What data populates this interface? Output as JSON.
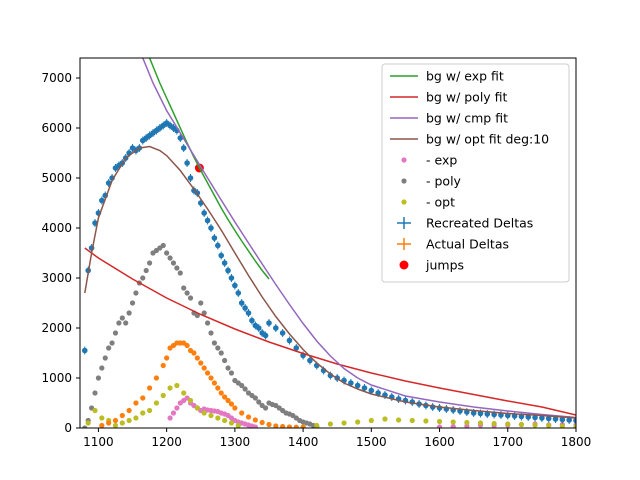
{
  "chart_data": {
    "type": "scatter",
    "title": "",
    "xlabel": "",
    "ylabel": "",
    "xlim": [
      1073,
      1800
    ],
    "ylim": [
      0,
      7400
    ],
    "x_ticks": [
      1100,
      1200,
      1300,
      1400,
      1500,
      1600,
      1700,
      1800
    ],
    "y_ticks": [
      0,
      1000,
      2000,
      3000,
      4000,
      5000,
      6000,
      7000
    ],
    "grid": false,
    "legend_position": "top-right",
    "series": [
      {
        "name": "bg w/ exp fit",
        "kind": "line",
        "color": "#2ca02c",
        "x": [
          1175,
          1190,
          1200,
          1210,
          1220,
          1230,
          1240,
          1250,
          1260,
          1270,
          1280,
          1290,
          1300,
          1310,
          1320,
          1330,
          1340,
          1350
        ],
        "y": [
          7400,
          6900,
          6600,
          6300,
          6000,
          5700,
          5420,
          5150,
          4900,
          4650,
          4400,
          4170,
          3950,
          3740,
          3540,
          3340,
          3150,
          2980
        ]
      },
      {
        "name": "bg w/ poly fit",
        "kind": "line",
        "color": "#d62728",
        "x": [
          1080,
          1100,
          1150,
          1200,
          1250,
          1300,
          1350,
          1400,
          1450,
          1500,
          1550,
          1600,
          1650,
          1700,
          1750,
          1800
        ],
        "y": [
          3600,
          3400,
          2980,
          2600,
          2270,
          1980,
          1720,
          1490,
          1280,
          1100,
          940,
          800,
          670,
          540,
          420,
          260
        ]
      },
      {
        "name": "bg w/ cmp fit",
        "kind": "line",
        "color": "#9467bd",
        "x": [
          1165,
          1180,
          1200,
          1220,
          1240,
          1260,
          1280,
          1300,
          1320,
          1340,
          1360,
          1380,
          1400,
          1420,
          1440,
          1460,
          1480,
          1500,
          1550,
          1600,
          1650,
          1700,
          1750,
          1800
        ],
        "y": [
          7400,
          6900,
          6350,
          5900,
          5450,
          5000,
          4560,
          4120,
          3700,
          3280,
          2870,
          2470,
          2090,
          1740,
          1440,
          1190,
          1000,
          860,
          640,
          520,
          420,
          340,
          270,
          210
        ]
      },
      {
        "name": "bg w/ opt fit deg:10",
        "kind": "line",
        "color": "#8c564b",
        "x": [
          1080,
          1090,
          1100,
          1120,
          1140,
          1160,
          1175,
          1190,
          1200,
          1220,
          1240,
          1260,
          1280,
          1300,
          1320,
          1340,
          1360,
          1380,
          1400,
          1420,
          1440,
          1460,
          1480,
          1500,
          1550,
          1600,
          1650,
          1700,
          1750,
          1800
        ],
        "y": [
          2700,
          3500,
          4200,
          4950,
          5400,
          5600,
          5630,
          5550,
          5450,
          5150,
          4780,
          4380,
          3960,
          3500,
          3050,
          2620,
          2230,
          1880,
          1570,
          1300,
          1080,
          900,
          780,
          680,
          520,
          420,
          350,
          290,
          250,
          200
        ]
      },
      {
        "name": "- exp",
        "kind": "scatter",
        "color": "#e377c2",
        "x": [
          1205,
          1210,
          1215,
          1220,
          1225,
          1230,
          1235,
          1240,
          1245,
          1250,
          1255,
          1260,
          1265,
          1270,
          1275,
          1280,
          1285,
          1290,
          1295,
          1300,
          1305,
          1310,
          1315,
          1320,
          1325,
          1330,
          1600,
          1620,
          1640,
          1660,
          1680,
          1700,
          1720,
          1740,
          1760,
          1780,
          1800
        ],
        "y": [
          200,
          300,
          400,
          500,
          550,
          600,
          500,
          450,
          400,
          350,
          380,
          360,
          350,
          340,
          330,
          300,
          280,
          250,
          200,
          150,
          120,
          100,
          80,
          60,
          40,
          20,
          20,
          30,
          40,
          60,
          50,
          60,
          70,
          80,
          60,
          70,
          60
        ]
      },
      {
        "name": "- poly",
        "kind": "scatter",
        "color": "#7f7f7f",
        "x": [
          1080,
          1085,
          1090,
          1095,
          1100,
          1105,
          1110,
          1115,
          1120,
          1125,
          1130,
          1135,
          1140,
          1145,
          1150,
          1155,
          1160,
          1165,
          1170,
          1175,
          1180,
          1185,
          1190,
          1195,
          1200,
          1205,
          1210,
          1215,
          1220,
          1225,
          1230,
          1235,
          1240,
          1245,
          1250,
          1255,
          1260,
          1265,
          1270,
          1275,
          1280,
          1285,
          1290,
          1295,
          1300,
          1305,
          1310,
          1315,
          1320,
          1325,
          1330,
          1335,
          1340,
          1345,
          1350,
          1355,
          1360,
          1365,
          1370,
          1375,
          1380,
          1385,
          1390,
          1395,
          1400,
          1405,
          1410,
          1415,
          1420
        ],
        "y": [
          0,
          150,
          400,
          700,
          1000,
          1200,
          1400,
          1600,
          1700,
          1900,
          2100,
          2200,
          2100,
          2300,
          2500,
          2700,
          2900,
          3000,
          3150,
          3300,
          3500,
          3550,
          3600,
          3650,
          3500,
          3400,
          3300,
          3200,
          3100,
          2800,
          2700,
          2600,
          2300,
          2250,
          2500,
          2300,
          2100,
          1900,
          1700,
          1600,
          1500,
          1350,
          1200,
          1100,
          950,
          900,
          850,
          780,
          700,
          650,
          600,
          520,
          450,
          400,
          500,
          470,
          450,
          400,
          350,
          300,
          280,
          250,
          200,
          150,
          120,
          100,
          80,
          50,
          20
        ]
      },
      {
        "name": "- opt",
        "kind": "scatter",
        "color": "#bcbd22",
        "x": [
          1085,
          1095,
          1105,
          1115,
          1125,
          1135,
          1145,
          1155,
          1165,
          1175,
          1185,
          1195,
          1205,
          1215,
          1225,
          1235,
          1245,
          1255,
          1265,
          1275,
          1285,
          1295,
          1305,
          1400,
          1420,
          1440,
          1460,
          1480,
          1500,
          1520,
          1540,
          1560,
          1580,
          1600,
          1620,
          1640,
          1660,
          1680,
          1700,
          1720,
          1740,
          1760,
          1780,
          1800
        ],
        "y": [
          100,
          350,
          200,
          150,
          50,
          100,
          150,
          200,
          300,
          350,
          500,
          650,
          800,
          850,
          700,
          550,
          400,
          300,
          250,
          200,
          150,
          100,
          50,
          20,
          50,
          80,
          100,
          120,
          150,
          180,
          160,
          150,
          140,
          130,
          120,
          110,
          100,
          90,
          80,
          70,
          60,
          50,
          40,
          30
        ]
      },
      {
        "name": "",
        "kind": "scatter",
        "color": "#ff7f0e",
        "x": [
          1105,
          1115,
          1125,
          1135,
          1145,
          1155,
          1165,
          1175,
          1185,
          1195,
          1200,
          1205,
          1210,
          1215,
          1220,
          1225,
          1230,
          1235,
          1240,
          1245,
          1250,
          1255,
          1260,
          1265,
          1270,
          1275,
          1280,
          1285,
          1290,
          1295,
          1300,
          1310,
          1320,
          1330,
          1340,
          1350,
          1360,
          1370,
          1380,
          1390,
          1400
        ],
        "y": [
          50,
          100,
          150,
          250,
          350,
          500,
          600,
          800,
          1000,
          1250,
          1400,
          1600,
          1650,
          1700,
          1700,
          1700,
          1650,
          1550,
          1500,
          1400,
          1300,
          1200,
          1100,
          1000,
          900,
          800,
          700,
          620,
          550,
          480,
          400,
          300,
          220,
          160,
          110,
          70,
          40,
          30,
          20,
          15,
          10
        ]
      },
      {
        "name": "Recreated Deltas",
        "kind": "errorbar",
        "color": "#1f77b4",
        "x": [
          1080,
          1085,
          1090,
          1095,
          1100,
          1105,
          1110,
          1115,
          1120,
          1125,
          1130,
          1135,
          1140,
          1145,
          1150,
          1155,
          1160,
          1165,
          1170,
          1175,
          1180,
          1185,
          1190,
          1195,
          1200,
          1205,
          1210,
          1215,
          1220,
          1225,
          1230,
          1235,
          1240,
          1245,
          1250,
          1255,
          1260,
          1265,
          1270,
          1275,
          1280,
          1285,
          1290,
          1295,
          1300,
          1305,
          1310,
          1315,
          1320,
          1325,
          1330,
          1335,
          1340,
          1345,
          1350,
          1360,
          1370,
          1380,
          1390,
          1400,
          1410,
          1420,
          1430,
          1440,
          1450,
          1460,
          1470,
          1480,
          1490,
          1500,
          1510,
          1520,
          1530,
          1540,
          1550,
          1560,
          1570,
          1580,
          1590,
          1600,
          1610,
          1620,
          1630,
          1640,
          1650,
          1660,
          1670,
          1680,
          1690,
          1700,
          1710,
          1720,
          1730,
          1740,
          1750,
          1760,
          1770,
          1780,
          1790,
          1800
        ],
        "y": [
          1550,
          3150,
          3600,
          4100,
          4300,
          4550,
          4650,
          4900,
          5000,
          5200,
          5250,
          5300,
          5400,
          5500,
          5600,
          5550,
          5600,
          5750,
          5800,
          5850,
          5900,
          5950,
          6000,
          6050,
          6100,
          6050,
          6000,
          5950,
          5800,
          5600,
          5300,
          5000,
          4750,
          4700,
          4500,
          4300,
          4150,
          4000,
          3800,
          3650,
          3450,
          3300,
          3150,
          3000,
          2850,
          2700,
          2500,
          2400,
          2300,
          2150,
          2050,
          2000,
          1900,
          1850,
          2100,
          2000,
          1900,
          1750,
          1600,
          1450,
          1350,
          1250,
          1150,
          1050,
          1000,
          950,
          900,
          850,
          800,
          750,
          700,
          660,
          620,
          580,
          550,
          520,
          480,
          450,
          420,
          400,
          380,
          360,
          340,
          320,
          300,
          290,
          280,
          270,
          260,
          250,
          240,
          230,
          220,
          210,
          200,
          190,
          180,
          170,
          160,
          150
        ]
      },
      {
        "name": "Actual Deltas",
        "kind": "errorbar",
        "color": "#ff7f0e",
        "x": [],
        "y": []
      },
      {
        "name": "jumps",
        "kind": "scatter",
        "color": "#ff0000",
        "x": [
          1248
        ],
        "y": [
          5200
        ]
      }
    ]
  }
}
